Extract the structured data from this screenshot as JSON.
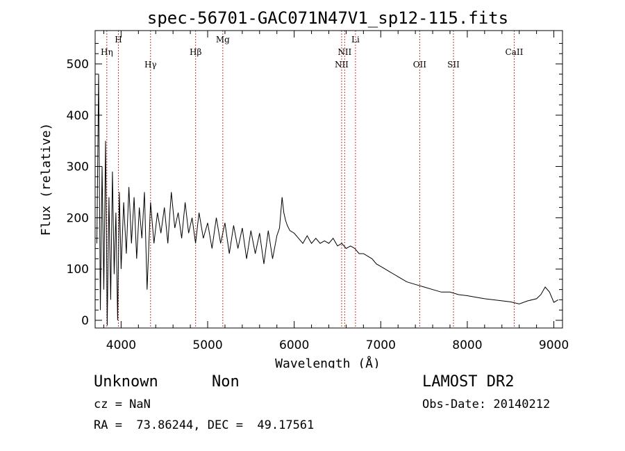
{
  "chart_data": {
    "type": "line",
    "title": "spec-56701-GAC071N47V1_sp12-115.fits",
    "xlabel": "Wavelength (Å)",
    "ylabel": "Flux (relative)",
    "xlim": [
      3700,
      9100
    ],
    "ylim": [
      -15,
      565
    ],
    "xticks": [
      "4000",
      "5000",
      "6000",
      "7000",
      "8000",
      "9000"
    ],
    "yticks": [
      "0",
      "100",
      "200",
      "300",
      "400",
      "500"
    ],
    "xtick_values": [
      4000,
      5000,
      6000,
      7000,
      8000,
      9000
    ],
    "ytick_values": [
      0,
      100,
      200,
      300,
      400,
      500
    ],
    "grid": false,
    "series": [
      {
        "x": [
          3720,
          3740,
          3760,
          3780,
          3800,
          3820,
          3840,
          3860,
          3880,
          3900,
          3920,
          3940,
          3960,
          3980,
          4000,
          4030,
          4060,
          4090,
          4120,
          4150,
          4180,
          4210,
          4240,
          4270,
          4300,
          4340,
          4380,
          4420,
          4460,
          4500,
          4540,
          4580,
          4620,
          4660,
          4700,
          4740,
          4780,
          4820,
          4860,
          4900,
          4950,
          5000,
          5050,
          5100,
          5150,
          5200,
          5250,
          5300,
          5350,
          5400,
          5450,
          5500,
          5550,
          5600,
          5650,
          5700,
          5750,
          5800,
          5830,
          5860,
          5880,
          5900,
          5920,
          5950,
          6000,
          6050,
          6100,
          6150,
          6200,
          6250,
          6300,
          6350,
          6400,
          6450,
          6500,
          6550,
          6600,
          6650,
          6700,
          6750,
          6800,
          6850,
          6900,
          6950,
          7000,
          7050,
          7100,
          7150,
          7200,
          7300,
          7400,
          7500,
          7600,
          7700,
          7800,
          7900,
          8000,
          8100,
          8200,
          8300,
          8400,
          8500,
          8600,
          8700,
          8800,
          8850,
          8900,
          8950,
          9000,
          9050
        ],
        "y": [
          150,
          480,
          20,
          300,
          60,
          350,
          -10,
          240,
          40,
          290,
          90,
          210,
          0,
          250,
          100,
          230,
          130,
          260,
          150,
          240,
          120,
          220,
          160,
          250,
          60,
          230,
          150,
          210,
          170,
          220,
          150,
          250,
          180,
          210,
          160,
          230,
          170,
          200,
          150,
          210,
          160,
          190,
          140,
          200,
          150,
          190,
          130,
          185,
          140,
          180,
          120,
          175,
          130,
          170,
          110,
          175,
          120,
          165,
          180,
          240,
          210,
          195,
          185,
          175,
          170,
          160,
          150,
          165,
          150,
          160,
          150,
          155,
          150,
          160,
          145,
          150,
          140,
          145,
          140,
          130,
          130,
          125,
          120,
          110,
          105,
          100,
          95,
          90,
          85,
          75,
          70,
          65,
          60,
          55,
          55,
          50,
          48,
          45,
          42,
          40,
          38,
          36,
          32,
          38,
          42,
          50,
          65,
          55,
          35,
          40
        ]
      }
    ],
    "annotations": [
      {
        "label": "Hη",
        "x": 3835,
        "row": 1
      },
      {
        "label": "H",
        "x": 3969,
        "row": 0
      },
      {
        "label": "Hγ",
        "x": 4340,
        "row": 2
      },
      {
        "label": "Hβ",
        "x": 4861,
        "row": 1
      },
      {
        "label": "Mg",
        "x": 5175,
        "row": 0
      },
      {
        "label": "NII",
        "x": 6548,
        "row": 2
      },
      {
        "label": "NII",
        "x": 6583,
        "row": 1
      },
      {
        "label": "Li",
        "x": 6708,
        "row": 0
      },
      {
        "label": "OII",
        "x": 7450,
        "row": 2
      },
      {
        "label": "SII",
        "x": 7840,
        "row": 2
      },
      {
        "label": "CaII",
        "x": 8542,
        "row": 1
      }
    ],
    "colors": {
      "spectrum": "#000000",
      "line_markers": "#c0392b",
      "axes": "#000000"
    }
  },
  "footer": {
    "object_class": "Unknown",
    "object_subclass": "Non",
    "survey": "LAMOST DR2",
    "cz": "cz = NaN",
    "obs_date": "Obs-Date: 20140212",
    "coords": "RA =  73.86244, DEC =  49.17561"
  }
}
